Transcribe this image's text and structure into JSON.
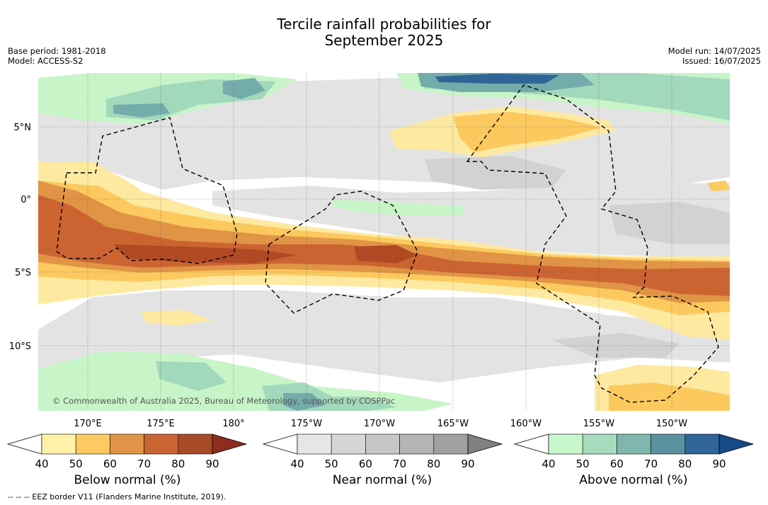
{
  "header": {
    "title_line1": "Tercile rainfall probabilities for",
    "title_line2": "September 2025",
    "base_period": "Base period: 1981-2018",
    "model": "Model: ACCESS-S2",
    "model_run": "Model run: 14/07/2025",
    "issued": "Issued: 16/07/2025"
  },
  "map": {
    "lat_labels": [
      "5°N",
      "0°",
      "5°S",
      "10°S"
    ],
    "lon_labels": [
      "170°E",
      "175°E",
      "180°",
      "175°W",
      "170°W",
      "165°W",
      "160°W",
      "155°W",
      "150°W"
    ],
    "credit": "© Commonwealth of Australia 2025, Bureau of Meteorology, supported by COSPPac",
    "colors": {
      "land_bg": "#ffffff",
      "near_40": "#e3e3e3",
      "near_50": "#d2d2d2",
      "below_40": "#fde9a0",
      "below_50": "#fcc95e",
      "below_60": "#e19445",
      "below_70": "#cc6432",
      "below_80": "#b04a25",
      "above_40": "#c8f5c8",
      "above_50": "#a2d8bc",
      "above_60": "#74abab",
      "above_70": "#5890a6",
      "above_80": "#2f6596"
    }
  },
  "colorbars": [
    {
      "label": "Below normal (%)",
      "ticks": [
        "40",
        "50",
        "60",
        "70",
        "80",
        "90"
      ],
      "colors": [
        "#fff1a8",
        "#fdca62",
        "#e09447",
        "#c96532",
        "#a94a28",
        "#8c2d1e"
      ]
    },
    {
      "label": "Near normal (%)",
      "ticks": [
        "40",
        "50",
        "60",
        "70",
        "80",
        "90"
      ],
      "colors": [
        "#e6e6e6",
        "#d6d6d6",
        "#c6c6c6",
        "#b4b4b4",
        "#a0a0a0",
        "#808080"
      ]
    },
    {
      "label": "Above normal (%)",
      "ticks": [
        "40",
        "50",
        "60",
        "70",
        "80",
        "90"
      ],
      "colors": [
        "#c8f7cc",
        "#a6dcbd",
        "#7fb6ad",
        "#5a92a2",
        "#2f6598",
        "#164a87"
      ]
    }
  ],
  "footnote": "--  --  -- EEZ border V11 (Flanders Marine Institute, 2019)."
}
